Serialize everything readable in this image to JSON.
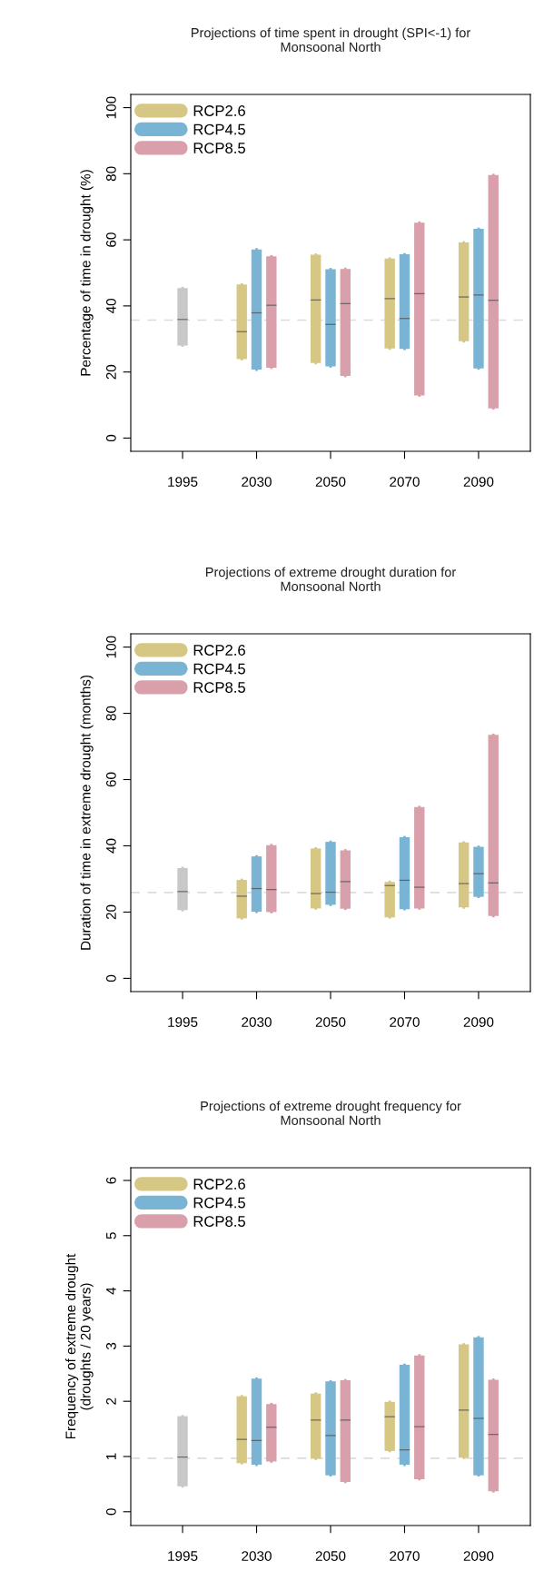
{
  "chart_data": [
    {
      "type": "box",
      "title": "Projections of time spent in drought (SPI<-1) for\nMonsoonal North",
      "ylabel": "Percentage of time in drought (%)",
      "categories": [
        "1995",
        "2030",
        "2050",
        "2070",
        "2090"
      ],
      "ylim": [
        -4,
        104
      ],
      "yticks": [
        0,
        20,
        40,
        60,
        80,
        100
      ],
      "legend": "top left",
      "grid": false,
      "ref_lines": [
        {
          "axis": "y",
          "value": 35.7,
          "color": "#dcdcdc",
          "line_style": "dashed"
        }
      ],
      "series": [
        {
          "color": "#c8c8c8",
          "boxes": [
            {
              "low": 28.0,
              "q1": 28.0,
              "median": 35.9,
              "q3": 45.4,
              "high": 45.4
            },
            null,
            null,
            null,
            null
          ]
        },
        {
          "name": "RCP2.6",
          "color": "#d6c884",
          "boxes": [
            null,
            {
              "low": 23.9,
              "q1": 23.9,
              "median": 32.2,
              "q3": 46.5,
              "high": 46.5
            },
            {
              "low": 22.7,
              "q1": 22.7,
              "median": 41.8,
              "q3": 55.5,
              "high": 55.5
            },
            {
              "low": 27.1,
              "q1": 27.1,
              "median": 42.2,
              "q3": 54.3,
              "high": 54.3
            },
            {
              "low": 29.3,
              "q1": 29.3,
              "median": 42.7,
              "q3": 59.2,
              "high": 59.2
            }
          ]
        },
        {
          "name": "RCP4.5",
          "color": "#79b4d4",
          "boxes": [
            null,
            {
              "low": 20.7,
              "q1": 20.7,
              "median": 37.9,
              "q3": 57.1,
              "high": 57.1
            },
            {
              "low": 21.7,
              "q1": 21.7,
              "median": 34.4,
              "q3": 51.1,
              "high": 51.1
            },
            {
              "low": 27.0,
              "q1": 27.0,
              "median": 36.2,
              "q3": 55.6,
              "high": 55.6
            },
            {
              "low": 21.1,
              "q1": 21.1,
              "median": 43.3,
              "q3": 63.3,
              "high": 63.3
            }
          ]
        },
        {
          "name": "RCP8.5",
          "color": "#d9a0ab",
          "boxes": [
            null,
            {
              "low": 21.3,
              "q1": 21.3,
              "median": 40.2,
              "q3": 55.0,
              "high": 55.0
            },
            {
              "low": 18.8,
              "q1": 18.8,
              "median": 40.7,
              "q3": 51.2,
              "high": 51.2
            },
            {
              "low": 12.9,
              "q1": 12.9,
              "median": 43.7,
              "q3": 65.2,
              "high": 65.2
            },
            {
              "low": 9.0,
              "q1": 9.0,
              "median": 41.7,
              "q3": 79.6,
              "high": 79.6
            }
          ]
        }
      ]
    },
    {
      "type": "box",
      "title": "Projections of extreme drought duration for\nMonsoonal North",
      "ylabel": "Duration of time in extreme drought (months)",
      "categories": [
        "1995",
        "2030",
        "2050",
        "2070",
        "2090"
      ],
      "ylim": [
        -4,
        104
      ],
      "yticks": [
        0,
        20,
        40,
        60,
        80,
        100
      ],
      "legend": "top left",
      "grid": false,
      "ref_lines": [
        {
          "axis": "y",
          "value": 25.9,
          "color": "#dcdcdc",
          "line_style": "dashed"
        }
      ],
      "series": [
        {
          "color": "#c8c8c8",
          "boxes": [
            {
              "low": 20.6,
              "q1": 20.6,
              "median": 26.2,
              "q3": 33.3,
              "high": 33.3
            },
            null,
            null,
            null,
            null
          ]
        },
        {
          "name": "RCP2.6",
          "color": "#d6c884",
          "boxes": [
            null,
            {
              "low": 18.1,
              "q1": 18.1,
              "median": 24.8,
              "q3": 29.7,
              "high": 29.7
            },
            {
              "low": 21.1,
              "q1": 21.1,
              "median": 25.6,
              "q3": 39.2,
              "high": 39.2
            },
            {
              "low": 18.4,
              "q1": 18.4,
              "median": 28.0,
              "q3": 29.1,
              "high": 29.1
            },
            {
              "low": 21.4,
              "q1": 21.4,
              "median": 28.6,
              "q3": 41.0,
              "high": 41.0
            }
          ]
        },
        {
          "name": "RCP4.5",
          "color": "#79b4d4",
          "boxes": [
            null,
            {
              "low": 20.1,
              "q1": 20.1,
              "median": 27.1,
              "q3": 36.8,
              "high": 36.8
            },
            {
              "low": 22.2,
              "q1": 22.2,
              "median": 26.0,
              "q3": 41.2,
              "high": 41.2
            },
            {
              "low": 20.9,
              "q1": 20.9,
              "median": 29.6,
              "q3": 42.6,
              "high": 42.6
            },
            {
              "low": 24.6,
              "q1": 24.6,
              "median": 31.6,
              "q3": 39.7,
              "high": 39.7
            }
          ]
        },
        {
          "name": "RCP8.5",
          "color": "#d9a0ab",
          "boxes": [
            null,
            {
              "low": 20.0,
              "q1": 20.0,
              "median": 26.8,
              "q3": 40.2,
              "high": 40.2
            },
            {
              "low": 21.0,
              "q1": 21.0,
              "median": 29.2,
              "q3": 38.6,
              "high": 38.6
            },
            {
              "low": 21.1,
              "q1": 21.1,
              "median": 27.5,
              "q3": 51.7,
              "high": 51.7
            },
            {
              "low": 18.8,
              "q1": 18.8,
              "median": 28.8,
              "q3": 73.5,
              "high": 73.5
            }
          ]
        }
      ]
    },
    {
      "type": "box",
      "title": "Projections of extreme drought frequency for\nMonsoonal North",
      "ylabel": "Frequency of extreme drought\n(droughts / 20 years)",
      "categories": [
        "1995",
        "2030",
        "2050",
        "2070",
        "2090"
      ],
      "ylim": [
        -0.25,
        6.23
      ],
      "yticks": [
        0,
        1,
        2,
        3,
        4,
        5,
        6
      ],
      "legend": "top left",
      "grid": false,
      "ref_lines": [
        {
          "axis": "y",
          "value": 0.97,
          "color": "#dcdcdc",
          "line_style": "dashed"
        }
      ],
      "series": [
        {
          "color": "#c8c8c8",
          "boxes": [
            {
              "low": 0.46,
              "q1": 0.46,
              "median": 0.99,
              "q3": 1.73,
              "high": 1.73
            },
            null,
            null,
            null,
            null
          ]
        },
        {
          "name": "RCP2.6",
          "color": "#d6c884",
          "boxes": [
            null,
            {
              "low": 0.88,
              "q1": 0.88,
              "median": 1.31,
              "q3": 2.09,
              "high": 2.09
            },
            {
              "low": 0.96,
              "q1": 0.96,
              "median": 1.66,
              "q3": 2.14,
              "high": 2.14
            },
            {
              "low": 1.1,
              "q1": 1.1,
              "median": 1.72,
              "q3": 1.99,
              "high": 1.99
            },
            {
              "low": 0.98,
              "q1": 0.98,
              "median": 1.84,
              "q3": 3.03,
              "high": 3.03
            }
          ]
        },
        {
          "name": "RCP4.5",
          "color": "#79b4d4",
          "boxes": [
            null,
            {
              "low": 0.85,
              "q1": 0.85,
              "median": 1.29,
              "q3": 2.41,
              "high": 2.41
            },
            {
              "low": 0.66,
              "q1": 0.66,
              "median": 1.38,
              "q3": 2.36,
              "high": 2.36
            },
            {
              "low": 0.85,
              "q1": 0.85,
              "median": 1.12,
              "q3": 2.66,
              "high": 2.66
            },
            {
              "low": 0.66,
              "q1": 0.66,
              "median": 1.69,
              "q3": 3.16,
              "high": 3.16
            }
          ]
        },
        {
          "name": "RCP8.5",
          "color": "#d9a0ab",
          "boxes": [
            null,
            {
              "low": 0.91,
              "q1": 0.91,
              "median": 1.53,
              "q3": 1.95,
              "high": 1.95
            },
            {
              "low": 0.54,
              "q1": 0.54,
              "median": 1.66,
              "q3": 2.38,
              "high": 2.38
            },
            {
              "low": 0.59,
              "q1": 0.59,
              "median": 1.54,
              "q3": 2.83,
              "high": 2.83
            },
            {
              "low": 0.37,
              "q1": 0.37,
              "median": 1.4,
              "q3": 2.39,
              "high": 2.39
            }
          ]
        }
      ]
    }
  ]
}
